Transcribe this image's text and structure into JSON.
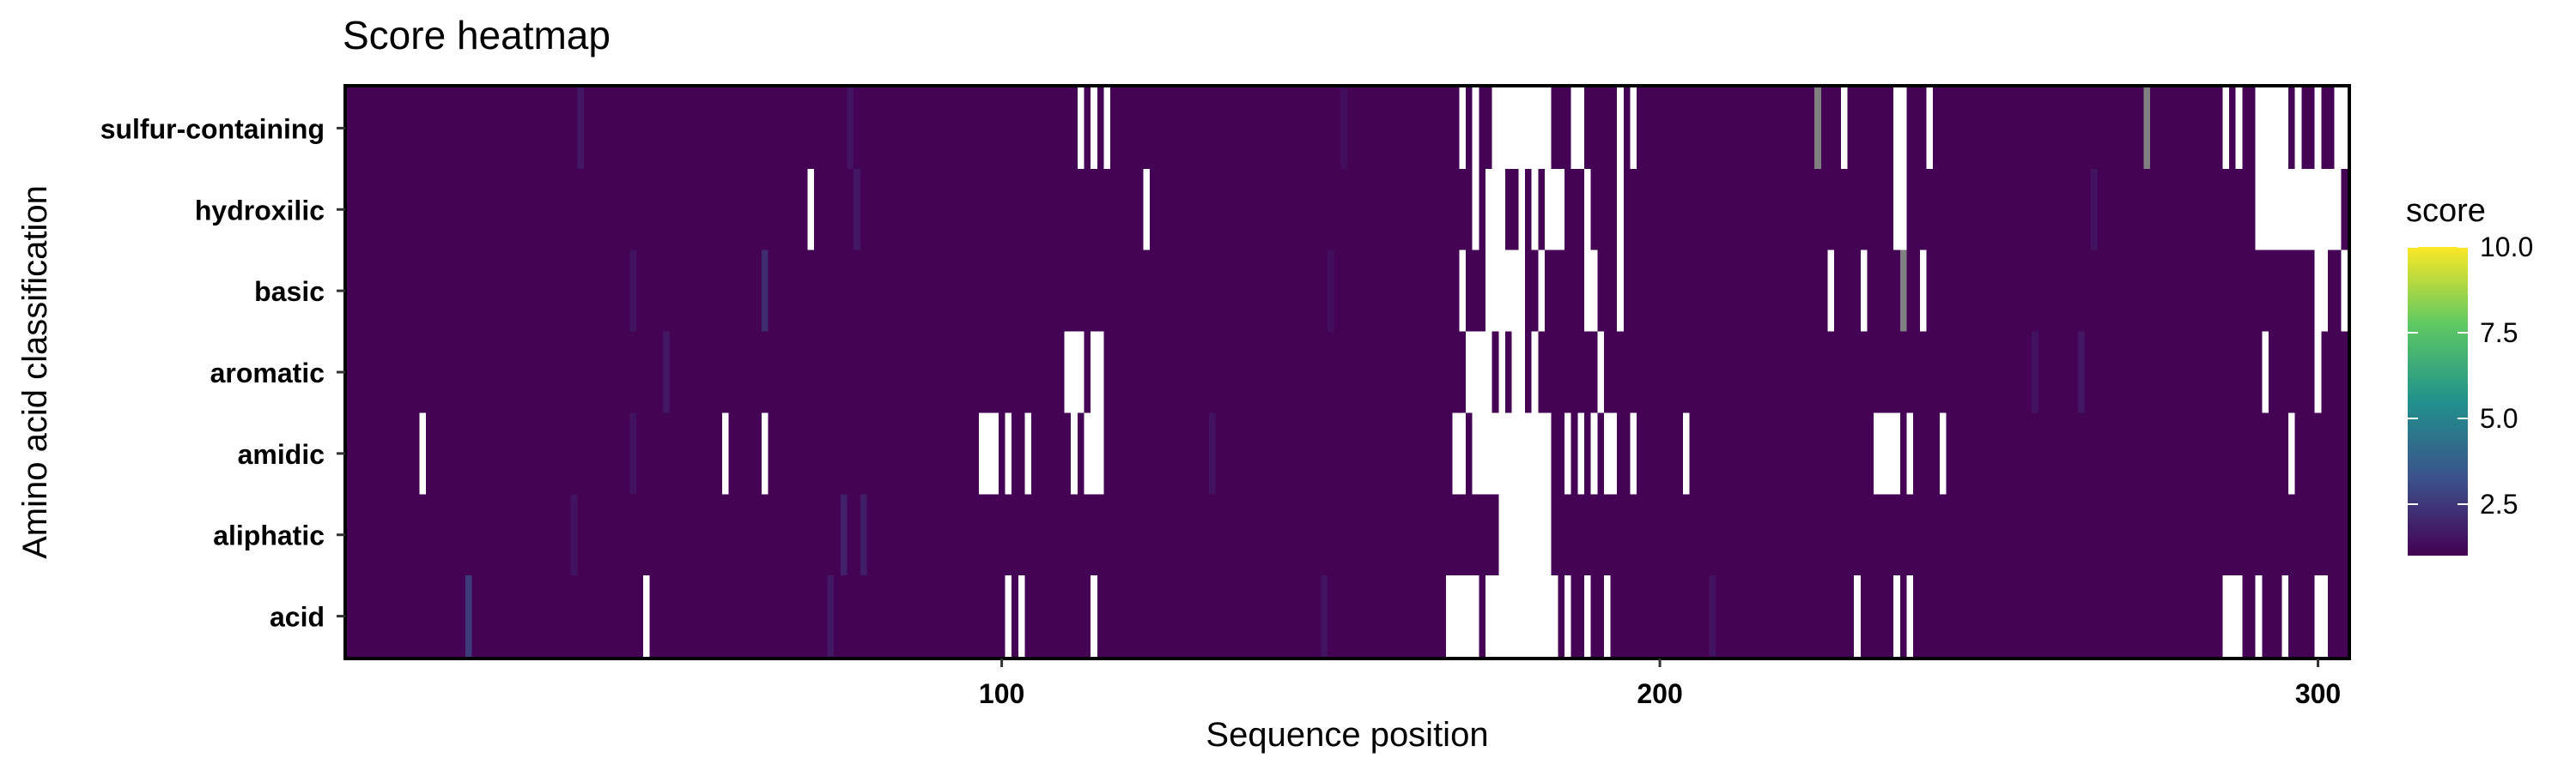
{
  "chart_data": {
    "type": "heatmap",
    "title": "Score heatmap",
    "xlabel": "Sequence position",
    "ylabel": "Amino acid classification",
    "categories": [
      "sulfur-containing",
      "hydroxilic",
      "basic",
      "aromatic",
      "amidic",
      "aliphatic",
      "acid"
    ],
    "xlim": [
      1,
      304
    ],
    "x_ticks": [
      100,
      200,
      300
    ],
    "legend": {
      "title": "score",
      "placement": "right",
      "colorscale": "viridis",
      "range": [
        1,
        10
      ],
      "ticks": [
        "2.5",
        "5.0",
        "7.5",
        "10.0"
      ],
      "colors": [
        "#440154",
        "#3b528b",
        "#21918c",
        "#5ec962",
        "#fde725"
      ]
    },
    "base_value": 1.05,
    "missing_color": "#ffffff",
    "grey_color": "#808080",
    "missing_positions": {
      "sulfur-containing": [
        112,
        114,
        116,
        170,
        172,
        175,
        176,
        177,
        178,
        179,
        180,
        181,
        182,
        183,
        187,
        188,
        194,
        196,
        228,
        236,
        237,
        241,
        286,
        288,
        291,
        292,
        293,
        294,
        295,
        297,
        300,
        303,
        304
      ],
      "hydroxilic": [
        71,
        122,
        172,
        174,
        175,
        176,
        179,
        181,
        183,
        184,
        185,
        189,
        194,
        236,
        237,
        291,
        292,
        293,
        294,
        295,
        296,
        297,
        298,
        299,
        300,
        301,
        302,
        303
      ],
      "basic": [
        170,
        174,
        175,
        176,
        177,
        178,
        179,
        182,
        189,
        190,
        194,
        226,
        231,
        240,
        300,
        301,
        304
      ],
      "aromatic": [
        110,
        111,
        112,
        114,
        115,
        171,
        172,
        173,
        174,
        176,
        178,
        179,
        181,
        191,
        292,
        300
      ],
      "amidic": [
        12,
        58,
        64,
        97,
        98,
        99,
        101,
        104,
        111,
        113,
        114,
        115,
        169,
        170,
        172,
        173,
        174,
        175,
        176,
        177,
        178,
        179,
        180,
        181,
        182,
        183,
        186,
        188,
        190,
        192,
        193,
        196,
        204,
        233,
        234,
        235,
        236,
        238,
        243,
        296
      ],
      "aliphatic": [
        176,
        177,
        178,
        179,
        180,
        181,
        182,
        183
      ],
      "acid": [
        46,
        101,
        103,
        114,
        168,
        169,
        170,
        171,
        172,
        174,
        175,
        176,
        177,
        178,
        179,
        180,
        181,
        182,
        183,
        184,
        186,
        189,
        192,
        230,
        236,
        238,
        286,
        287,
        288,
        291,
        295,
        300,
        301
      ]
    },
    "grey_positions": {
      "sulfur-containing": [
        224,
        274
      ],
      "basic": [
        237
      ]
    },
    "highlight_cells": [
      {
        "category": "sulfur-containing",
        "x": 36,
        "value": 1.6
      },
      {
        "category": "sulfur-containing",
        "x": 77,
        "value": 1.5
      },
      {
        "category": "sulfur-containing",
        "x": 152,
        "value": 1.4
      },
      {
        "category": "hydroxilic",
        "x": 78,
        "value": 1.6
      },
      {
        "category": "hydroxilic",
        "x": 266,
        "value": 1.5
      },
      {
        "category": "basic",
        "x": 64,
        "value": 2.2
      },
      {
        "category": "basic",
        "x": 44,
        "value": 1.5
      },
      {
        "category": "basic",
        "x": 150,
        "value": 1.4
      },
      {
        "category": "aromatic",
        "x": 49,
        "value": 1.6
      },
      {
        "category": "aromatic",
        "x": 264,
        "value": 1.6
      },
      {
        "category": "aromatic",
        "x": 257,
        "value": 1.5
      },
      {
        "category": "amidic",
        "x": 44,
        "value": 1.5
      },
      {
        "category": "amidic",
        "x": 132,
        "value": 1.5
      },
      {
        "category": "aliphatic",
        "x": 76,
        "value": 1.9
      },
      {
        "category": "aliphatic",
        "x": 79,
        "value": 1.8
      },
      {
        "category": "aliphatic",
        "x": 35,
        "value": 1.5
      },
      {
        "category": "acid",
        "x": 19,
        "value": 2.6
      },
      {
        "category": "acid",
        "x": 74,
        "value": 1.6
      },
      {
        "category": "acid",
        "x": 149,
        "value": 1.5
      },
      {
        "category": "acid",
        "x": 208,
        "value": 1.5
      }
    ]
  }
}
